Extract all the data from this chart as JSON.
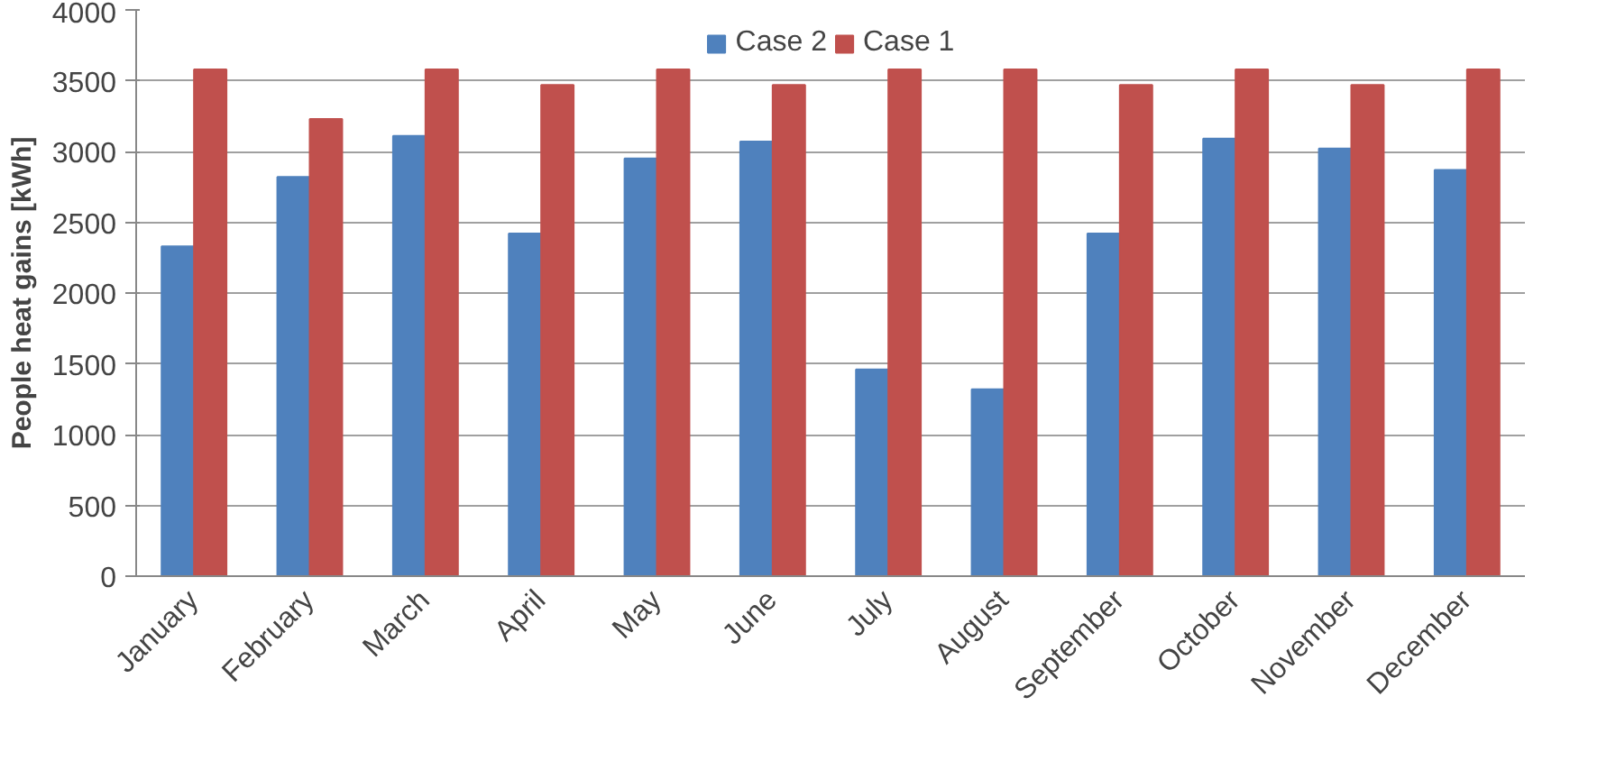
{
  "chart_data": {
    "type": "bar",
    "ylabel": "People heat gains [kWh]",
    "categories": [
      "January",
      "February",
      "March",
      "April",
      "May",
      "June",
      "July",
      "August",
      "September",
      "October",
      "November",
      "December"
    ],
    "series": [
      {
        "name": "Case 2",
        "color": "#4f81bd",
        "values": [
          2330,
          2820,
          3110,
          2420,
          2950,
          3070,
          1460,
          1320,
          2420,
          3090,
          3020,
          2870
        ]
      },
      {
        "name": "Case 1",
        "color": "#c0504d",
        "values": [
          3580,
          3230,
          3580,
          3470,
          3580,
          3470,
          3580,
          3580,
          3470,
          3580,
          3470,
          3580
        ]
      }
    ],
    "ylim": [
      0,
      4000
    ],
    "yticks": [
      0,
      500,
      1000,
      1500,
      2000,
      2500,
      3000,
      3500,
      4000
    ],
    "grid": "y",
    "legend": "top"
  }
}
